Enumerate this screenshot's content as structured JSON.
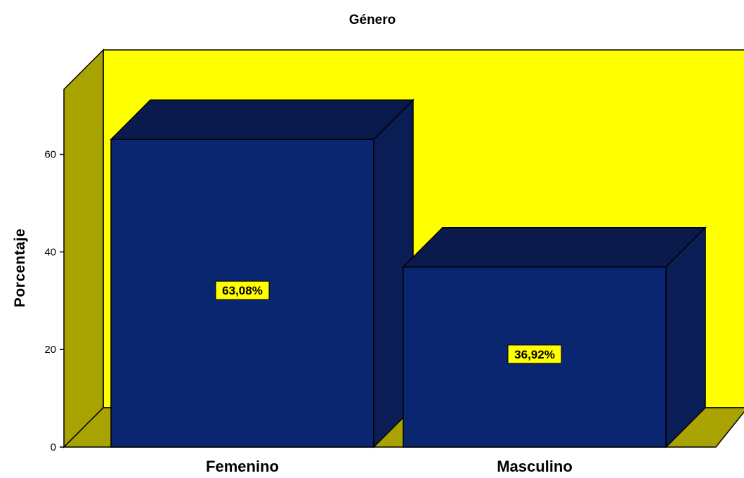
{
  "chart_data": {
    "type": "bar",
    "title": "Género",
    "xlabel": "",
    "ylabel": "Porcentaje",
    "categories": [
      "Femenino",
      "Masculino"
    ],
    "values": [
      63.08,
      36.92
    ],
    "data_labels": [
      "63,08%",
      "36,92%"
    ],
    "yticks": [
      0,
      20,
      40,
      60
    ],
    "ylim": [
      0,
      75
    ],
    "style": "3d",
    "colors": {
      "bar_front": "#0b2670",
      "bar_top": "#0a1a4c",
      "bar_side": "#0b1d55",
      "back_wall": "#ffff00",
      "side_wall": "#a8a300",
      "floor": "#a8a300",
      "label_bg": "#ffff00"
    }
  }
}
